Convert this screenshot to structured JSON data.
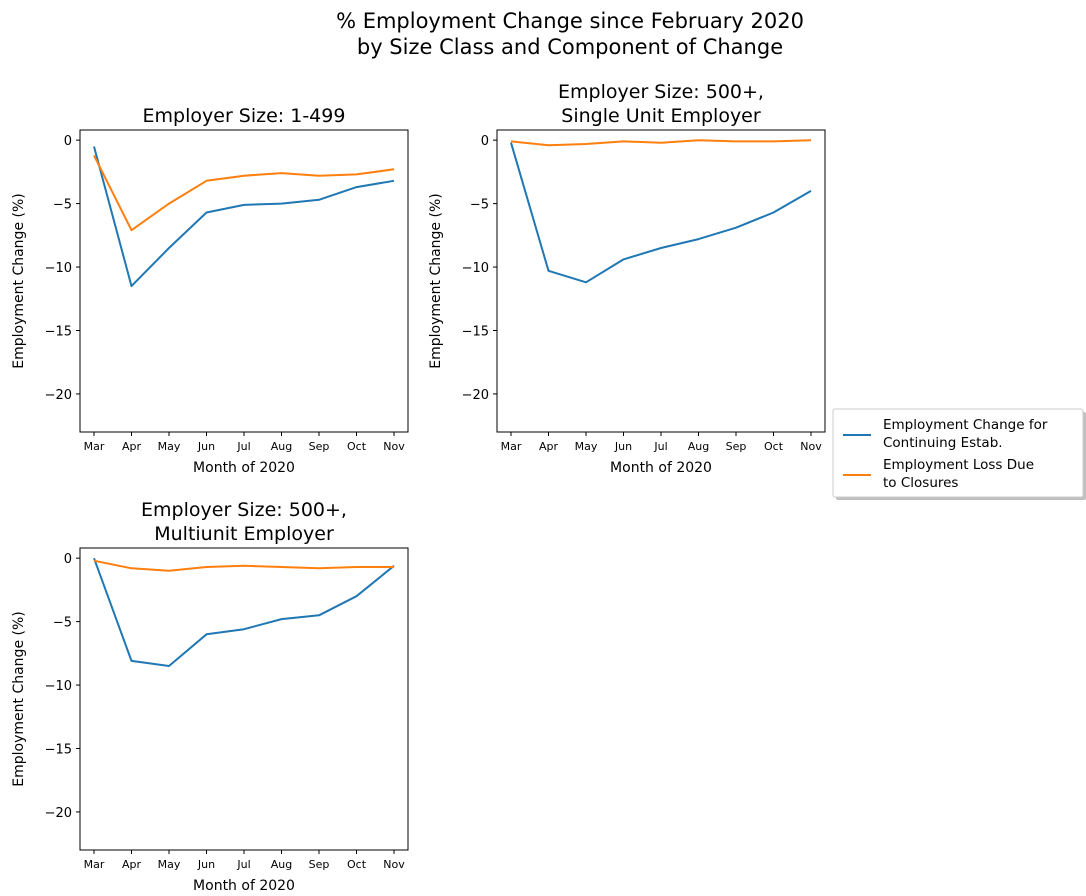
{
  "suptitle": [
    "% Employment Change since February 2020",
    "by Size Class and Component of Change"
  ],
  "colors": {
    "continuing": "#1f77b4",
    "closures": "#ff7f0e"
  },
  "legend": {
    "placement": "right",
    "entries": [
      {
        "key": "continuing",
        "lines": [
          "Employment Change for",
          "Continuing Estab."
        ]
      },
      {
        "key": "closures",
        "lines": [
          "Employment Loss Due",
          " to Closures"
        ]
      }
    ]
  },
  "chart_data": [
    {
      "type": "line",
      "title": [
        "Employer Size: 1-499"
      ],
      "xlabel": "Month of 2020",
      "ylabel": "Employment Change (%)",
      "categories": [
        "Mar",
        "Apr",
        "May",
        "Jun",
        "Jul",
        "Aug",
        "Sep",
        "Oct",
        "Nov"
      ],
      "yticks": [
        0,
        -5,
        -10,
        -15,
        -20
      ],
      "ylim": [
        -23,
        0.8
      ],
      "grid": false,
      "series": [
        {
          "key": "continuing",
          "values": [
            -0.5,
            -11.5,
            -8.5,
            -5.7,
            -5.1,
            -5.0,
            -4.7,
            -3.7,
            -3.2
          ]
        },
        {
          "key": "closures",
          "values": [
            -1.2,
            -7.1,
            -5.0,
            -3.2,
            -2.8,
            -2.6,
            -2.8,
            -2.7,
            -2.3
          ]
        }
      ]
    },
    {
      "type": "line",
      "title": [
        "Employer Size: 500+,",
        "Single Unit Employer"
      ],
      "xlabel": "Month of 2020",
      "ylabel": "Employment Change (%)",
      "categories": [
        "Mar",
        "Apr",
        "May",
        "Jun",
        "Jul",
        "Aug",
        "Sep",
        "Oct",
        "Nov"
      ],
      "yticks": [
        0,
        -5,
        -10,
        -15,
        -20
      ],
      "ylim": [
        -23,
        0.8
      ],
      "grid": false,
      "series": [
        {
          "key": "continuing",
          "values": [
            -0.2,
            -10.3,
            -11.2,
            -9.4,
            -8.5,
            -7.8,
            -6.9,
            -5.7,
            -4.0
          ]
        },
        {
          "key": "closures",
          "values": [
            -0.1,
            -0.4,
            -0.3,
            -0.1,
            -0.2,
            0.0,
            -0.1,
            -0.1,
            0.0
          ]
        }
      ]
    },
    {
      "type": "line",
      "title": [
        "Employer Size: 500+,",
        "Multiunit Employer"
      ],
      "xlabel": "Month of 2020",
      "ylabel": "Employment Change (%)",
      "categories": [
        "Mar",
        "Apr",
        "May",
        "Jun",
        "Jul",
        "Aug",
        "Sep",
        "Oct",
        "Nov"
      ],
      "yticks": [
        0,
        -5,
        -10,
        -15,
        -20
      ],
      "ylim": [
        -23,
        0.8
      ],
      "grid": false,
      "series": [
        {
          "key": "continuing",
          "values": [
            0.0,
            -8.1,
            -8.5,
            -6.0,
            -5.6,
            -4.8,
            -4.5,
            -3.0,
            -0.6
          ]
        },
        {
          "key": "closures",
          "values": [
            -0.2,
            -0.8,
            -1.0,
            -0.7,
            -0.6,
            -0.7,
            -0.8,
            -0.7,
            -0.7
          ]
        }
      ]
    }
  ]
}
